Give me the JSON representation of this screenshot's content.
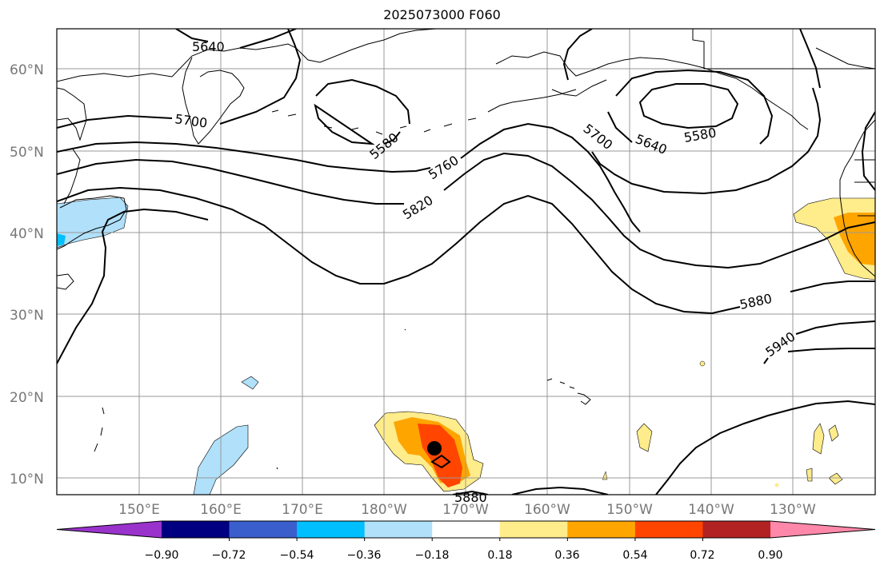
{
  "title": "2025073000 F060",
  "lat_labels": [
    "60°N",
    "50°N",
    "40°N",
    "30°N",
    "20°N",
    "10°N"
  ],
  "lon_labels": [
    "150°E",
    "160°E",
    "170°E",
    "180°W",
    "170°W",
    "160°W",
    "150°W",
    "140°W",
    "130°W"
  ],
  "contour_labels": [
    "5640",
    "5700",
    "5580",
    "5760",
    "5820",
    "5700",
    "5640",
    "5580",
    "5880",
    "5940",
    "5880"
  ],
  "colorbar": {
    "ticks": [
      "−0.90",
      "−0.72",
      "−0.54",
      "−0.36",
      "−0.18",
      "0.18",
      "0.36",
      "0.54",
      "0.72",
      "0.90"
    ],
    "colors": [
      "#9933cc",
      "#000080",
      "#3a5fcd",
      "#00bfff",
      "#b0e0fa",
      "#ffffff",
      "#ffec8b",
      "#ffa500",
      "#ff4500",
      "#b22222",
      "#ff88aa"
    ]
  }
}
